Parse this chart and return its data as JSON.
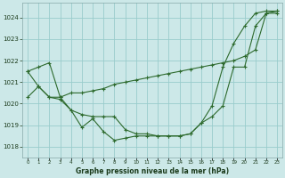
{
  "title": "Graphe pression niveau de la mer (hPa)",
  "background_color": "#cce8e8",
  "grid_color": "#99cccc",
  "line_color": "#2d6a2d",
  "hours": [
    0,
    1,
    2,
    3,
    4,
    5,
    6,
    7,
    8,
    9,
    10,
    11,
    12,
    13,
    14,
    15,
    16,
    17,
    18,
    19,
    20,
    21,
    22,
    23
  ],
  "x_labels": [
    "0",
    "1",
    "2",
    "3",
    "4",
    "5",
    "6",
    "7",
    "8",
    "9",
    "10",
    "11",
    "12",
    "13",
    "14",
    "15",
    "16",
    "17",
    "18",
    "19",
    "20",
    "21",
    "22",
    "23"
  ],
  "line_straight": [
    1021.5,
    1021.7,
    1021.9,
    1020.3,
    1020.5,
    1020.5,
    1020.6,
    1020.7,
    1020.9,
    1021.0,
    1021.1,
    1021.2,
    1021.3,
    1021.4,
    1021.5,
    1021.6,
    1021.7,
    1021.8,
    1021.9,
    1022.0,
    1022.2,
    1022.5,
    1024.2,
    1024.3
  ],
  "line_low": [
    1020.3,
    1020.8,
    1020.3,
    1020.2,
    1019.7,
    1018.9,
    1019.3,
    1018.7,
    1018.3,
    1018.4,
    1018.5,
    1018.5,
    1018.5,
    1018.5,
    1018.5,
    1018.6,
    1019.1,
    1019.4,
    1019.9,
    1021.7,
    1021.7,
    1023.6,
    1024.2,
    1024.2
  ],
  "line_mid": [
    1021.5,
    1020.8,
    1020.3,
    1020.3,
    1019.7,
    1019.5,
    1019.4,
    1019.4,
    1019.4,
    1018.8,
    1018.6,
    1018.6,
    1018.5,
    1018.5,
    1018.5,
    1018.6,
    1019.1,
    1019.9,
    1021.7,
    1022.8,
    1023.6,
    1024.2,
    1024.3,
    1024.3
  ],
  "ylim_min": 1017.5,
  "ylim_max": 1024.7,
  "yticks": [
    1018,
    1019,
    1020,
    1021,
    1022,
    1023,
    1024
  ]
}
